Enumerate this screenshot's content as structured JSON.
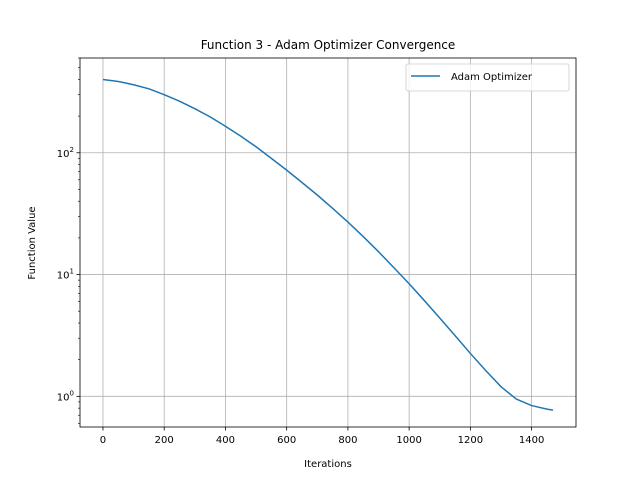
{
  "chart_data": {
    "type": "line",
    "title": "Function 3 - Adam Optimizer Convergence",
    "xlabel": "Iterations",
    "ylabel": "Function Value",
    "yscale": "log",
    "xlim": [
      -75,
      1545
    ],
    "ylim": [
      0.56,
      600
    ],
    "xticks": [
      0,
      200,
      400,
      600,
      800,
      1000,
      1200,
      1400
    ],
    "xtick_labels": [
      "0",
      "200",
      "400",
      "600",
      "800",
      "1000",
      "1200",
      "1400"
    ],
    "yticks": [
      1,
      10,
      100
    ],
    "ytick_labels": [
      {
        "base": "10",
        "exp": "0"
      },
      {
        "base": "10",
        "exp": "1"
      },
      {
        "base": "10",
        "exp": "2"
      }
    ],
    "grid": true,
    "legend_position": "top-right",
    "series": [
      {
        "name": "Adam Optimizer",
        "color": "#1f77b4",
        "x": [
          0,
          50,
          100,
          150,
          200,
          250,
          300,
          350,
          400,
          450,
          500,
          550,
          600,
          650,
          700,
          750,
          800,
          850,
          900,
          950,
          1000,
          1050,
          1100,
          1150,
          1200,
          1250,
          1300,
          1350,
          1400,
          1450,
          1470
        ],
        "y": [
          400,
          385,
          362,
          335,
          300,
          265,
          230,
          197,
          165,
          137,
          112,
          90,
          72,
          57,
          45,
          35,
          27,
          20.5,
          15.4,
          11.4,
          8.4,
          6.1,
          4.4,
          3.15,
          2.25,
          1.63,
          1.2,
          0.95,
          0.84,
          0.785,
          0.77
        ]
      }
    ]
  }
}
